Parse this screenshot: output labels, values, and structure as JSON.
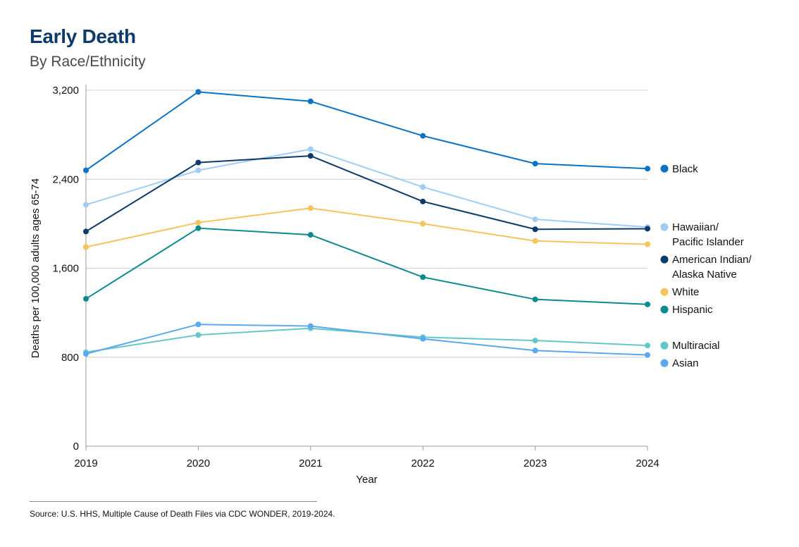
{
  "header": {
    "title": "Early Death",
    "subtitle": "By Race/Ethnicity"
  },
  "source": "Source: U.S. HHS, Multiple Cause of Death Files via CDC WONDER, 2019-2024.",
  "chart_data": {
    "type": "line",
    "x": [
      "2019",
      "2020",
      "2021",
      "2022",
      "2023",
      "2024"
    ],
    "xlabel": "Year",
    "ylabel": "Deaths per 100,000 adults ages 65-74",
    "ylim": [
      0,
      3200
    ],
    "yticks": [
      0,
      800,
      1600,
      2400,
      3200
    ],
    "ytick_labels": [
      "0",
      "800",
      "1,600",
      "2,400",
      "3,200"
    ],
    "grid": true,
    "legend_position": "right",
    "series": [
      {
        "name": "Black",
        "legend_lines": [
          "Black"
        ],
        "color": "#0b72c4",
        "values": [
          2480,
          3185,
          3100,
          2790,
          2540,
          2495
        ]
      },
      {
        "name": "Hawaiian/ Pacific Islander",
        "legend_lines": [
          "Hawaiian/",
          "Pacific Islander"
        ],
        "color": "#9fcdf5",
        "values": [
          2170,
          2480,
          2670,
          2330,
          2040,
          1970
        ]
      },
      {
        "name": "American Indian/ Alaska Native",
        "legend_lines": [
          "American Indian/",
          "Alaska Native"
        ],
        "color": "#0b3a6b",
        "values": [
          1930,
          2550,
          2610,
          2200,
          1950,
          1955
        ]
      },
      {
        "name": "White",
        "legend_lines": [
          "White"
        ],
        "color": "#f7c35c",
        "values": [
          1790,
          2010,
          2140,
          2000,
          1845,
          1815
        ]
      },
      {
        "name": "Hispanic",
        "legend_lines": [
          "Hispanic"
        ],
        "color": "#0b8a8f",
        "values": [
          1325,
          1960,
          1900,
          1520,
          1320,
          1275
        ]
      },
      {
        "name": "Multiracial",
        "legend_lines": [
          "Multiracial"
        ],
        "color": "#63c7c9",
        "values": [
          845,
          1000,
          1060,
          980,
          950,
          905
        ]
      },
      {
        "name": "Asian",
        "legend_lines": [
          "Asian"
        ],
        "color": "#5aa8ee",
        "values": [
          830,
          1095,
          1080,
          965,
          860,
          820
        ]
      }
    ]
  }
}
